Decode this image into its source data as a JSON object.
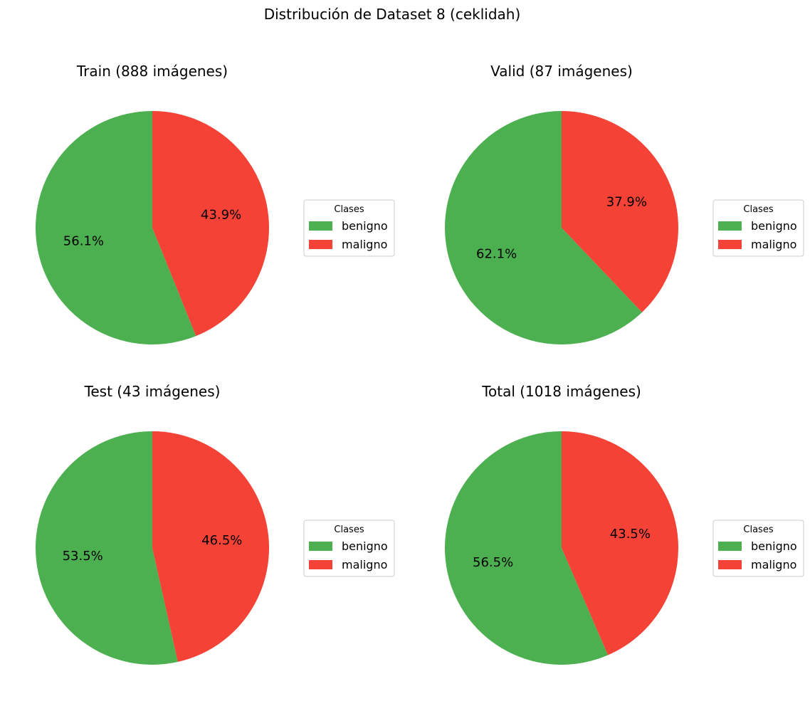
{
  "figure": {
    "suptitle": "Distribución de Dataset 8 (ceklidah)"
  },
  "chart_data": [
    {
      "type": "pie",
      "title": "Train (888 imágenes)",
      "labels": [
        "benigno",
        "maligno"
      ],
      "values": [
        56.1,
        43.9
      ],
      "pct_labels": [
        "56.1%",
        "43.9%"
      ],
      "colors": [
        "#4caf50",
        "#f44336"
      ],
      "legend": {
        "title": "Clases",
        "entries": [
          "benigno",
          "maligno"
        ],
        "placement": "right"
      },
      "start_angle": 90,
      "direction": "clockwise-from-right-series"
    },
    {
      "type": "pie",
      "title": "Valid (87 imágenes)",
      "labels": [
        "benigno",
        "maligno"
      ],
      "values": [
        62.1,
        37.9
      ],
      "pct_labels": [
        "62.1%",
        "37.9%"
      ],
      "colors": [
        "#4caf50",
        "#f44336"
      ],
      "legend": {
        "title": "Clases",
        "entries": [
          "benigno",
          "maligno"
        ],
        "placement": "right"
      },
      "start_angle": 90,
      "direction": "clockwise-from-right-series"
    },
    {
      "type": "pie",
      "title": "Test (43 imágenes)",
      "labels": [
        "benigno",
        "maligno"
      ],
      "values": [
        53.5,
        46.5
      ],
      "pct_labels": [
        "53.5%",
        "46.5%"
      ],
      "colors": [
        "#4caf50",
        "#f44336"
      ],
      "legend": {
        "title": "Clases",
        "entries": [
          "benigno",
          "maligno"
        ],
        "placement": "right"
      },
      "start_angle": 90,
      "direction": "clockwise-from-right-series"
    },
    {
      "type": "pie",
      "title": "Total (1018 imágenes)",
      "labels": [
        "benigno",
        "maligno"
      ],
      "values": [
        56.5,
        43.5
      ],
      "pct_labels": [
        "56.5%",
        "43.5%"
      ],
      "colors": [
        "#4caf50",
        "#f44336"
      ],
      "legend": {
        "title": "Clases",
        "entries": [
          "benigno",
          "maligno"
        ],
        "placement": "right"
      },
      "start_angle": 90,
      "direction": "clockwise-from-right-series"
    }
  ]
}
